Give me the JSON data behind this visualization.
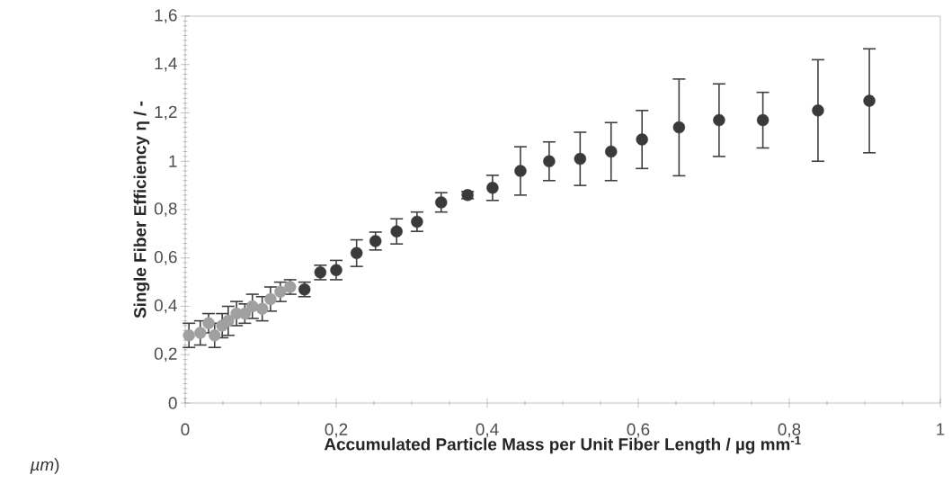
{
  "chart_data": {
    "type": "scatter",
    "xlabel": "Accumulated Particle Mass per Unit Fiber Length / µg mm$^{-1}$",
    "ylabel": "Single Fiber Efficiency η / -",
    "annotations": [
      "*µm*)"
    ],
    "series": [
      {
        "color": "#a0a0a0",
        "x": [
          0.005,
          0.02,
          0.031,
          0.039,
          0.049,
          0.057,
          0.068,
          0.079,
          0.089,
          0.102,
          0.113,
          0.126,
          0.139
        ],
        "values": [
          0.28,
          0.29,
          0.33,
          0.28,
          0.32,
          0.34,
          0.37,
          0.37,
          0.4,
          0.39,
          0.43,
          0.46,
          0.48
        ],
        "errors": [
          0.05,
          0.05,
          0.04,
          0.05,
          0.05,
          0.06,
          0.05,
          0.04,
          0.05,
          0.05,
          0.05,
          0.04,
          0.03
        ]
      },
      {
        "color": "#3a3a3a",
        "x": [
          0.158,
          0.179,
          0.2,
          0.227,
          0.252,
          0.28,
          0.307,
          0.339,
          0.374,
          0.407,
          0.444,
          0.482,
          0.523,
          0.564,
          0.605,
          0.654,
          0.707,
          0.765,
          0.838,
          0.906
        ],
        "values": [
          0.47,
          0.54,
          0.55,
          0.62,
          0.67,
          0.71,
          0.75,
          0.83,
          0.86,
          0.89,
          0.96,
          1.0,
          1.01,
          1.04,
          1.09,
          1.14,
          1.17,
          1.17,
          1.21,
          1.25
        ],
        "errors": [
          0.03,
          0.03,
          0.04,
          0.055,
          0.037,
          0.052,
          0.04,
          0.04,
          0.015,
          0.052,
          0.1,
          0.08,
          0.11,
          0.12,
          0.12,
          0.2,
          0.15,
          0.115,
          0.21,
          0.215
        ]
      }
    ],
    "marker": "circle",
    "xlim": [
      0,
      1
    ],
    "ylim": [
      0,
      1.6
    ],
    "xticks": [
      0,
      {
        "value": 0.2,
        "label": "0,2"
      },
      {
        "value": 0.4,
        "label": "0,4"
      },
      {
        "value": 0.6,
        "label": "0,6"
      },
      {
        "value": 0.8,
        "label": "0,8"
      },
      1
    ],
    "yticks": [
      0,
      {
        "value": 0.2,
        "label": "0,2"
      },
      {
        "value": 0.4,
        "label": "0,4"
      },
      {
        "value": 0.6,
        "label": "0,6"
      },
      {
        "value": 0.8,
        "label": "0,8"
      },
      1,
      {
        "value": 1.2,
        "label": "1,2"
      },
      {
        "value": 1.4,
        "label": "1,4"
      },
      {
        "value": 1.6,
        "label": "1,6"
      }
    ]
  }
}
